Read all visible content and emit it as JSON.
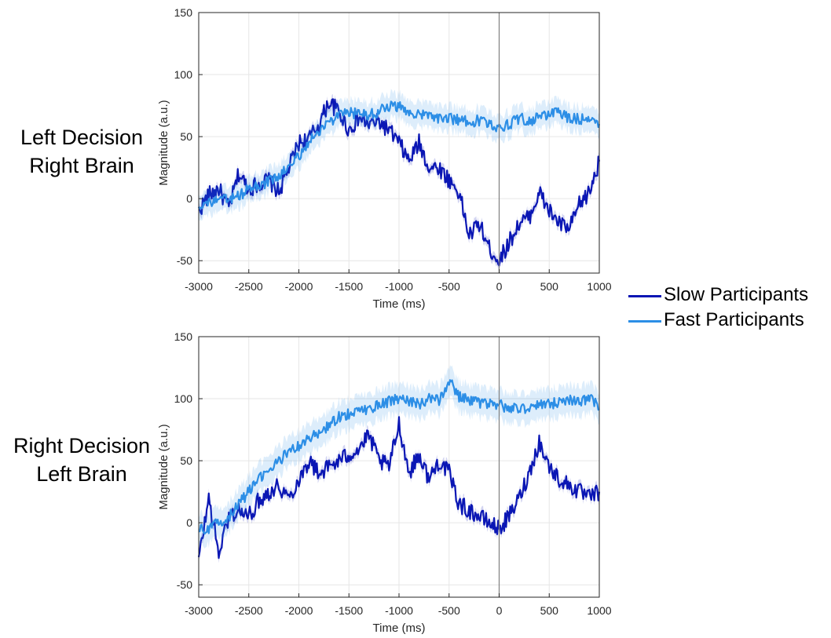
{
  "figure": {
    "row_labels": [
      [
        "Left Decision",
        "Right Brain"
      ],
      [
        "Right Decision",
        "Left Brain"
      ]
    ],
    "legend": [
      {
        "label": "Slow Participants",
        "color": "#0a16b4"
      },
      {
        "label": "Fast Participants",
        "color": "#2c8ee6"
      }
    ]
  },
  "chart_data": [
    {
      "type": "line",
      "xlabel": "Time (ms)",
      "ylabel": "Magnitude (a.u.)",
      "xlim": [
        -3000,
        1000
      ],
      "ylim": [
        -60,
        150
      ],
      "xticks": [
        -3000,
        -2500,
        -2000,
        -1500,
        -1000,
        -500,
        0,
        500,
        1000
      ],
      "yticks": [
        -50,
        0,
        50,
        100,
        150
      ],
      "grid": true,
      "vertical_line_at": 0,
      "shaded_error_band": true,
      "series": [
        {
          "name": "Slow Participants",
          "color": "#0a16b4",
          "x": [
            -3000,
            -2900,
            -2800,
            -2700,
            -2600,
            -2500,
            -2400,
            -2300,
            -2200,
            -2100,
            -2000,
            -1900,
            -1800,
            -1700,
            -1600,
            -1500,
            -1400,
            -1300,
            -1200,
            -1100,
            -1000,
            -900,
            -800,
            -700,
            -600,
            -500,
            -400,
            -300,
            -200,
            -100,
            0,
            100,
            200,
            300,
            400,
            500,
            600,
            700,
            800,
            900,
            1000
          ],
          "y": [
            -10,
            3,
            8,
            -8,
            20,
            8,
            12,
            15,
            5,
            25,
            45,
            48,
            60,
            78,
            70,
            55,
            65,
            60,
            62,
            55,
            45,
            30,
            45,
            25,
            25,
            15,
            5,
            -30,
            -20,
            -40,
            -50,
            -35,
            -20,
            -15,
            5,
            -10,
            -20,
            -25,
            -5,
            5,
            30
          ],
          "band": 4
        },
        {
          "name": "Fast Participants",
          "color": "#2c8ee6",
          "x": [
            -3000,
            -2900,
            -2800,
            -2700,
            -2600,
            -2500,
            -2400,
            -2300,
            -2200,
            -2100,
            -2000,
            -1900,
            -1800,
            -1700,
            -1600,
            -1500,
            -1400,
            -1300,
            -1200,
            -1100,
            -1000,
            -900,
            -800,
            -700,
            -600,
            -500,
            -400,
            -300,
            -200,
            -100,
            0,
            100,
            200,
            300,
            400,
            500,
            600,
            700,
            800,
            900,
            1000
          ],
          "y": [
            -5,
            -3,
            -2,
            0,
            2,
            8,
            10,
            14,
            18,
            25,
            35,
            45,
            55,
            62,
            66,
            70,
            68,
            68,
            70,
            75,
            74,
            70,
            68,
            66,
            65,
            65,
            63,
            62,
            63,
            60,
            58,
            60,
            65,
            62,
            66,
            68,
            70,
            65,
            64,
            66,
            60
          ],
          "band": 10
        }
      ]
    },
    {
      "type": "line",
      "xlabel": "Time (ms)",
      "ylabel": "Magnitude (a.u.)",
      "xlim": [
        -3000,
        1000
      ],
      "ylim": [
        -60,
        150
      ],
      "xticks": [
        -3000,
        -2500,
        -2000,
        -1500,
        -1000,
        -500,
        0,
        500,
        1000
      ],
      "yticks": [
        -50,
        0,
        50,
        100,
        150
      ],
      "grid": true,
      "vertical_line_at": 0,
      "shaded_error_band": true,
      "series": [
        {
          "name": "Slow Participants",
          "color": "#0a16b4",
          "x": [
            -3000,
            -2900,
            -2800,
            -2700,
            -2600,
            -2500,
            -2400,
            -2300,
            -2200,
            -2100,
            -2000,
            -1900,
            -1800,
            -1700,
            -1600,
            -1500,
            -1400,
            -1300,
            -1200,
            -1100,
            -1000,
            -900,
            -800,
            -700,
            -600,
            -500,
            -400,
            -300,
            -200,
            -100,
            0,
            100,
            200,
            300,
            400,
            500,
            600,
            700,
            800,
            900,
            1000
          ],
          "y": [
            -30,
            20,
            -25,
            5,
            10,
            5,
            18,
            25,
            30,
            20,
            35,
            50,
            40,
            45,
            50,
            55,
            60,
            70,
            50,
            45,
            80,
            40,
            55,
            35,
            50,
            40,
            15,
            10,
            5,
            0,
            -5,
            5,
            20,
            40,
            65,
            45,
            35,
            30,
            25,
            20,
            25
          ],
          "band": 4
        },
        {
          "name": "Fast Participants",
          "color": "#2c8ee6",
          "x": [
            -3000,
            -2900,
            -2800,
            -2700,
            -2600,
            -2500,
            -2400,
            -2300,
            -2200,
            -2100,
            -2000,
            -1900,
            -1800,
            -1700,
            -1600,
            -1500,
            -1400,
            -1300,
            -1200,
            -1100,
            -1000,
            -900,
            -800,
            -700,
            -600,
            -500,
            -400,
            -300,
            -200,
            -100,
            0,
            100,
            200,
            300,
            400,
            500,
            600,
            700,
            800,
            900,
            1000
          ],
          "y": [
            -5,
            -5,
            0,
            5,
            15,
            25,
            35,
            42,
            50,
            57,
            62,
            68,
            72,
            78,
            85,
            88,
            90,
            92,
            95,
            98,
            100,
            98,
            96,
            100,
            98,
            115,
            102,
            98,
            97,
            95,
            95,
            92,
            93,
            92,
            96,
            95,
            98,
            100,
            96,
            102,
            92
          ],
          "band": 12
        }
      ]
    }
  ]
}
